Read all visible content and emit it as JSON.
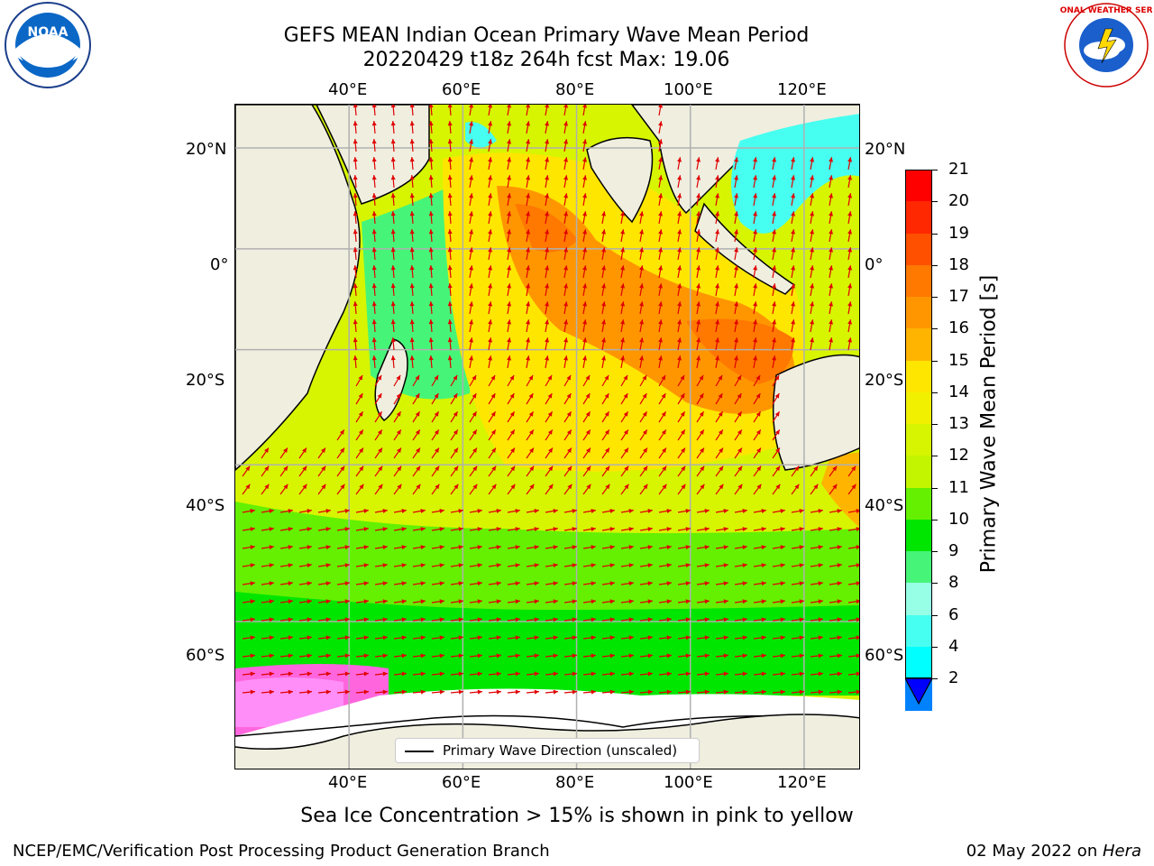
{
  "title": {
    "line1": "GEFS MEAN Indian Ocean Primary Wave Mean Period",
    "line2": "20220429 t18z 264h fcst   Max: 19.06"
  },
  "logos": {
    "left_name": "noaa-logo",
    "left_text": "NOAA",
    "right_name": "nws-logo",
    "right_text": "NATIONAL WEATHER SERVICE"
  },
  "axes": {
    "lon_ticks": [
      "40°E",
      "60°E",
      "80°E",
      "100°E",
      "120°E"
    ],
    "lat_ticks_left": [
      "20°N",
      "0°",
      "20°S",
      "40°S",
      "60°S"
    ],
    "lat_ticks_right": [
      "20°N",
      "0°",
      "20°S",
      "40°S",
      "60°S"
    ]
  },
  "colorbar": {
    "label": "Primary Wave Mean Period [s]",
    "ticks": [
      "21",
      "20",
      "19",
      "18",
      "17",
      "16",
      "15",
      "14",
      "13",
      "12",
      "11",
      "10",
      "9",
      "8",
      "6",
      "4",
      "2"
    ],
    "colors": [
      "#ff0000",
      "#ff2800",
      "#ff5000",
      "#ff7800",
      "#ff9600",
      "#ffb400",
      "#ffe600",
      "#f0f000",
      "#d7f500",
      "#c3f500",
      "#64f000",
      "#00e600",
      "#46f578",
      "#96ffe6",
      "#46fff0",
      "#00ffff",
      "#0082ff"
    ],
    "extend_color": "#0000ff"
  },
  "legend": {
    "label": "Primary Wave Direction (unscaled)"
  },
  "caption": "Sea Ice Concentration > 15% is shown in pink to yellow",
  "footer": {
    "left": "NCEP/EMC/Verification Post Processing Product Generation Branch",
    "right_date": "02 May 2022 on ",
    "right_machine": "Hera"
  },
  "map_data": {
    "lon_range": [
      20,
      130
    ],
    "lat_range": [
      -72,
      28
    ],
    "max_period": 19.06,
    "arrow_color": "#e00000"
  }
}
